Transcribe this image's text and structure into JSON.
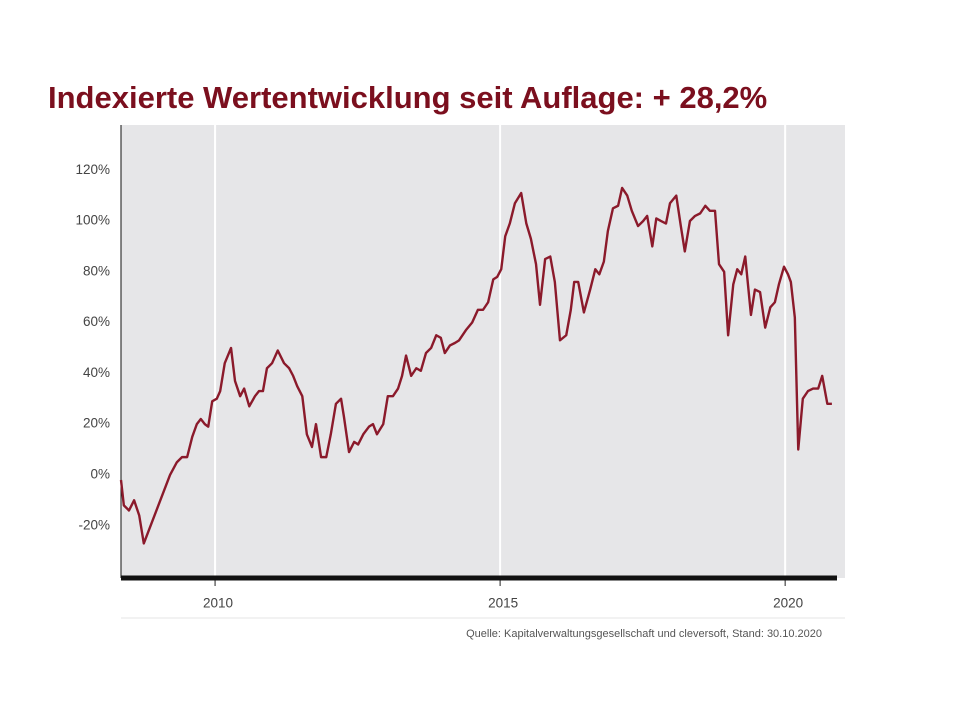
{
  "chart_data": {
    "type": "line",
    "title": "Indexierte Wertentwicklung seit Auflage: + 28,2%",
    "source": "Quelle: Kapitalverwaltungsgesellschaft und cleversoft, Stand: 30.10.2020",
    "xlim": [
      2008.35,
      2021.05
    ],
    "xticks": [
      2010,
      2015,
      2020
    ],
    "ylim": [
      -40.6,
      137.8
    ],
    "yticks": [
      {
        "value": -20,
        "label": "-20%"
      },
      {
        "value": 0,
        "label": "0%"
      },
      {
        "value": 20,
        "label": "20%"
      },
      {
        "value": 40,
        "label": "40%"
      },
      {
        "value": 60,
        "label": "60%"
      },
      {
        "value": 80,
        "label": "80%"
      },
      {
        "value": 100,
        "label": "100%"
      },
      {
        "value": 120,
        "label": "120%"
      }
    ],
    "grid": "x",
    "background": "#e6e6e8",
    "series": [
      {
        "color": "#8b1a2b",
        "x": [
          2008.35,
          2008.4,
          2008.49,
          2008.58,
          2008.67,
          2008.75,
          2009.21,
          2009.33,
          2009.42,
          2009.51,
          2009.6,
          2009.68,
          2009.75,
          2009.82,
          2009.88,
          2009.95,
          2010.03,
          2010.09,
          2010.17,
          2010.28,
          2010.35,
          2010.44,
          2010.51,
          2010.6,
          2010.7,
          2010.77,
          2010.84,
          2010.91,
          2011.0,
          2011.1,
          2011.21,
          2011.3,
          2011.37,
          2011.44,
          2011.53,
          2011.61,
          2011.7,
          2011.77,
          2011.86,
          2011.95,
          2012.03,
          2012.12,
          2012.21,
          2012.26,
          2012.35,
          2012.44,
          2012.51,
          2012.6,
          2012.7,
          2012.77,
          2012.84,
          2012.95,
          2013.03,
          2013.12,
          2013.21,
          2013.28,
          2013.35,
          2013.44,
          2013.53,
          2013.61,
          2013.7,
          2013.79,
          2013.88,
          2013.96,
          2014.03,
          2014.12,
          2014.21,
          2014.28,
          2014.4,
          2014.51,
          2014.61,
          2014.7,
          2014.79,
          2014.88,
          2014.95,
          2015.02,
          2015.09,
          2015.17,
          2015.26,
          2015.37,
          2015.46,
          2015.54,
          2015.63,
          2015.7,
          2015.79,
          2015.88,
          2015.96,
          2016.05,
          2016.16,
          2016.24,
          2016.3,
          2016.37,
          2016.47,
          2016.58,
          2016.67,
          2016.74,
          2016.82,
          2016.89,
          2016.98,
          2017.07,
          2017.14,
          2017.23,
          2017.31,
          2017.42,
          2017.51,
          2017.58,
          2017.67,
          2017.74,
          2017.82,
          2017.91,
          2017.98,
          2018.09,
          2018.17,
          2018.24,
          2018.33,
          2018.42,
          2018.51,
          2018.6,
          2018.68,
          2018.77,
          2018.84,
          2018.93,
          2019.0,
          2019.09,
          2019.16,
          2019.23,
          2019.3,
          2019.4,
          2019.47,
          2019.56,
          2019.65,
          2019.74,
          2019.82,
          2019.89,
          2019.98,
          2020.05,
          2020.1,
          2020.17,
          2020.23,
          2020.31,
          2020.4,
          2020.49,
          2020.58,
          2020.65,
          2020.74,
          2020.82
        ],
        "values": [
          -2,
          -12,
          -14,
          -10,
          -16,
          -27,
          0,
          5,
          7,
          7,
          15,
          20,
          22,
          20,
          19,
          29,
          30,
          33,
          44,
          50,
          37,
          31,
          34,
          27,
          31,
          33,
          33,
          42,
          44,
          49,
          44,
          42,
          39,
          35,
          31,
          16,
          11,
          20,
          7,
          7,
          16,
          28,
          30,
          23,
          9,
          13,
          12,
          16,
          19,
          20,
          16,
          20,
          31,
          31,
          34,
          39,
          47,
          39,
          42,
          41,
          48,
          50,
          55,
          54,
          48,
          51,
          52,
          53,
          57,
          60,
          65,
          65,
          68,
          77,
          78,
          81,
          94,
          99,
          107,
          111,
          99,
          93,
          83,
          67,
          85,
          86,
          76,
          53,
          55,
          65,
          76,
          76,
          64,
          73,
          81,
          79,
          84,
          96,
          105,
          106,
          113,
          110,
          104,
          98,
          100,
          102,
          90,
          101,
          100,
          99,
          107,
          110,
          98,
          88,
          100,
          102,
          103,
          106,
          104,
          104,
          83,
          80,
          55,
          75,
          81,
          79,
          86,
          63,
          73,
          72,
          58,
          66,
          68,
          75,
          82,
          79,
          76,
          62,
          10,
          30,
          33,
          34,
          34,
          39,
          28,
          28
        ]
      }
    ]
  }
}
